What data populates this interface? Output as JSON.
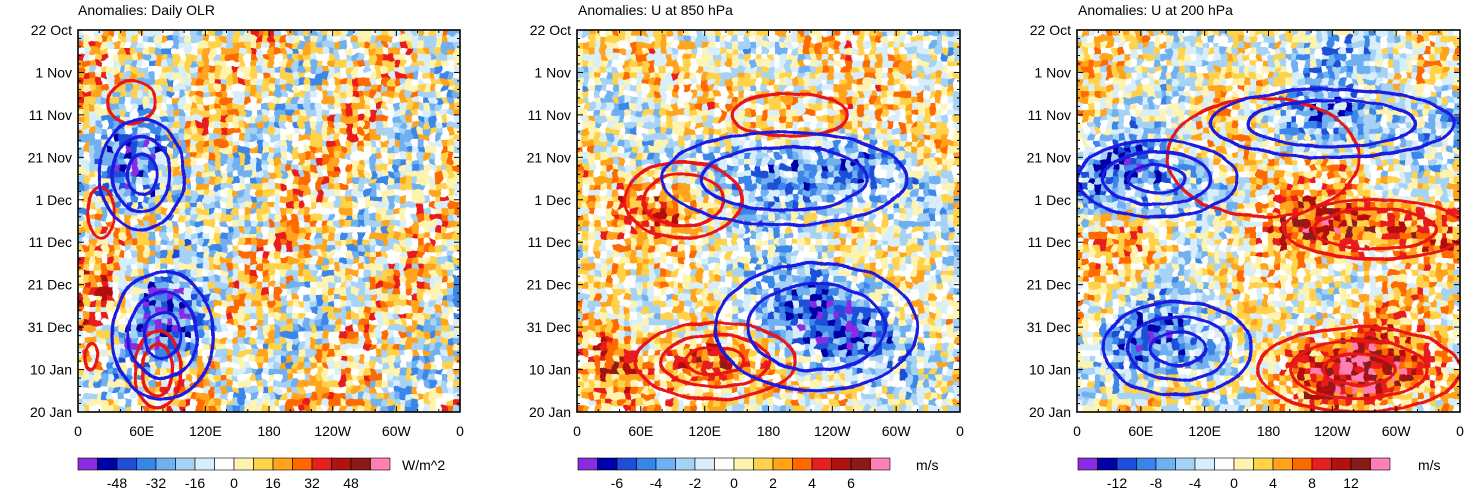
{
  "chart_data": [
    {
      "type": "heatmap",
      "title": "Anomalies: Daily OLR",
      "field": "olr",
      "x_ticks": [
        "0",
        "60E",
        "120E",
        "180",
        "120W",
        "60W",
        "0"
      ],
      "xlim": [
        0,
        360
      ],
      "y_ticks": [
        "22 Oct",
        "1 Nov",
        "11 Nov",
        "21 Nov",
        "1 Dec",
        "11 Dec",
        "21 Dec",
        "31 Dec",
        "10 Jan",
        "20 Jan"
      ],
      "ylim_days": [
        0,
        90
      ],
      "colorbar": {
        "ticks": [
          "-48",
          "-32",
          "-16",
          "0",
          "16",
          "32",
          "48"
        ],
        "units": "W/m^2",
        "colors": [
          "#8a2be2",
          "#0000a8",
          "#1f4fd8",
          "#3a86e8",
          "#6fb0f0",
          "#a6d3f5",
          "#d8eefb",
          "#ffffff",
          "#fff3b0",
          "#ffd24a",
          "#ffa41c",
          "#ff6a00",
          "#e81f1f",
          "#b21111",
          "#8a1a1a",
          "#ff7eb6"
        ]
      },
      "contours": {
        "red": [
          {
            "lon": 50,
            "day": 17,
            "rlon": 22,
            "rday": 5,
            "levels": 1
          },
          {
            "lon": 22,
            "day": 43,
            "rlon": 12,
            "rday": 6,
            "levels": 1
          },
          {
            "lon": 75,
            "day": 80,
            "rlon": 22,
            "rday": 9,
            "levels": 2
          },
          {
            "lon": 12,
            "day": 77,
            "rlon": 6,
            "rday": 3,
            "levels": 1
          }
        ],
        "blue": [
          {
            "lon": 60,
            "day": 34,
            "rlon": 40,
            "rday": 13,
            "levels": 3
          },
          {
            "lon": 80,
            "day": 72,
            "rlon": 48,
            "rday": 15,
            "levels": 3
          }
        ]
      }
    },
    {
      "type": "heatmap",
      "title": "Anomalies: U at 850 hPa",
      "field": "u850",
      "x_ticks": [
        "0",
        "60E",
        "120E",
        "180",
        "120W",
        "60W",
        "0"
      ],
      "xlim": [
        0,
        360
      ],
      "y_ticks": [
        "22 Oct",
        "1 Nov",
        "11 Nov",
        "21 Nov",
        "1 Dec",
        "11 Dec",
        "21 Dec",
        "31 Dec",
        "10 Jan",
        "20 Jan"
      ],
      "ylim_days": [
        0,
        90
      ],
      "colorbar": {
        "ticks": [
          "-6",
          "-4",
          "-2",
          "0",
          "2",
          "4",
          "6"
        ],
        "units": "m/s",
        "colors": [
          "#8a2be2",
          "#0000a8",
          "#1f4fd8",
          "#3a86e8",
          "#6fb0f0",
          "#a6d3f5",
          "#d8eefb",
          "#ffffff",
          "#fff3b0",
          "#ffd24a",
          "#ffa41c",
          "#ff6a00",
          "#e81f1f",
          "#b21111",
          "#8a1a1a",
          "#ff7eb6"
        ]
      },
      "contours": {
        "red": [
          {
            "lon": 200,
            "day": 20,
            "rlon": 55,
            "rday": 5,
            "levels": 1
          },
          {
            "lon": 100,
            "day": 40,
            "rlon": 55,
            "rday": 9,
            "levels": 2
          },
          {
            "lon": 130,
            "day": 78,
            "rlon": 75,
            "rday": 9,
            "levels": 3
          }
        ],
        "blue": [
          {
            "lon": 195,
            "day": 35,
            "rlon": 115,
            "rday": 11,
            "levels": 2
          },
          {
            "lon": 225,
            "day": 70,
            "rlon": 95,
            "rday": 15,
            "levels": 2
          }
        ]
      }
    },
    {
      "type": "heatmap",
      "title": "Anomalies: U at 200 hPa",
      "field": "u200",
      "x_ticks": [
        "0",
        "60E",
        "120E",
        "180",
        "120W",
        "60W",
        "0"
      ],
      "xlim": [
        0,
        360
      ],
      "y_ticks": [
        "22 Oct",
        "1 Nov",
        "11 Nov",
        "21 Nov",
        "1 Dec",
        "11 Dec",
        "21 Dec",
        "31 Dec",
        "10 Jan",
        "20 Jan"
      ],
      "ylim_days": [
        0,
        90
      ],
      "colorbar": {
        "ticks": [
          "-12",
          "-8",
          "-4",
          "0",
          "4",
          "8",
          "12"
        ],
        "units": "m/s",
        "colors": [
          "#8a2be2",
          "#0000a8",
          "#1f4fd8",
          "#3a86e8",
          "#6fb0f0",
          "#a6d3f5",
          "#d8eefb",
          "#ffffff",
          "#fff3b0",
          "#ffd24a",
          "#ffa41c",
          "#ff6a00",
          "#e81f1f",
          "#b21111",
          "#8a1a1a",
          "#ff7eb6"
        ]
      },
      "contours": {
        "red": [
          {
            "lon": 175,
            "day": 30,
            "rlon": 90,
            "rday": 14,
            "levels": 1
          },
          {
            "lon": 280,
            "day": 47,
            "rlon": 85,
            "rday": 7,
            "levels": 2
          },
          {
            "lon": 265,
            "day": 80,
            "rlon": 95,
            "rday": 10,
            "levels": 4
          }
        ],
        "blue": [
          {
            "lon": 240,
            "day": 22,
            "rlon": 115,
            "rday": 8,
            "levels": 2
          },
          {
            "lon": 75,
            "day": 35,
            "rlon": 75,
            "rday": 9,
            "levels": 3
          },
          {
            "lon": 95,
            "day": 75,
            "rlon": 70,
            "rday": 11,
            "levels": 3
          }
        ]
      }
    }
  ]
}
